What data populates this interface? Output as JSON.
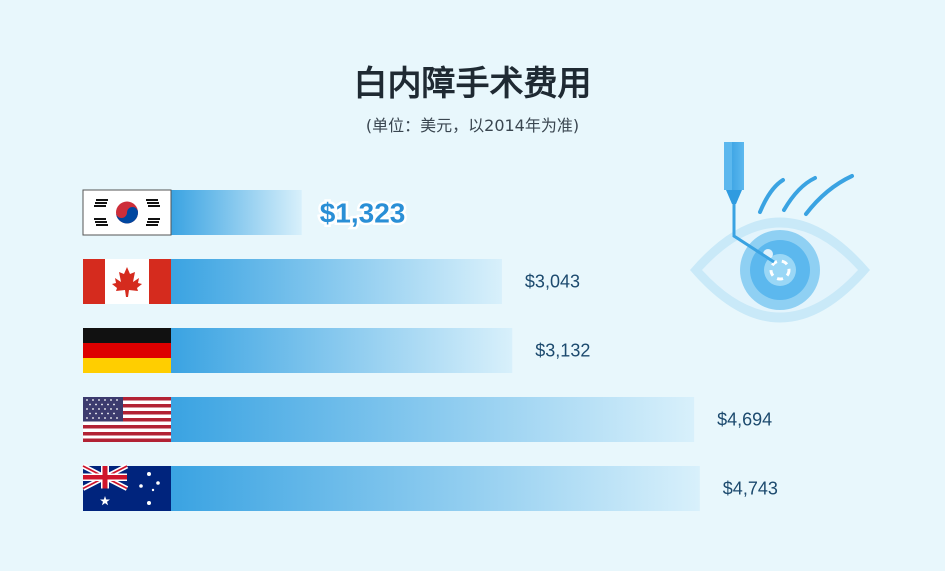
{
  "title": "白内障手术费用",
  "subtitle": "(单位：美元，以2014年为准)",
  "colors": {
    "background": "#e8f7fc",
    "bar_start": "#3aa3e2",
    "bar_end": "#d8f0fb",
    "value_text": "#1c4a6e",
    "highlight_value": "#2a8fd6"
  },
  "chart_data": {
    "type": "bar",
    "orientation": "horizontal",
    "categories": [
      "South Korea",
      "Canada",
      "Germany",
      "United States",
      "Australia"
    ],
    "flag_icons": [
      "south-korea-flag-icon",
      "canada-flag-icon",
      "germany-flag-icon",
      "usa-flag-icon",
      "australia-flag-icon"
    ],
    "values": [
      1323,
      3043,
      3132,
      4694,
      4743
    ],
    "value_labels": [
      "$1,323",
      "$3,043",
      "$3,132",
      "$4,694",
      "$4,743"
    ],
    "highlight_index": 0,
    "title": "白内障手术费用",
    "subtitle": "(单位：美元，以2014年为准)",
    "xlabel": "",
    "ylabel": ""
  },
  "illustration": "eye-surgery-icon"
}
